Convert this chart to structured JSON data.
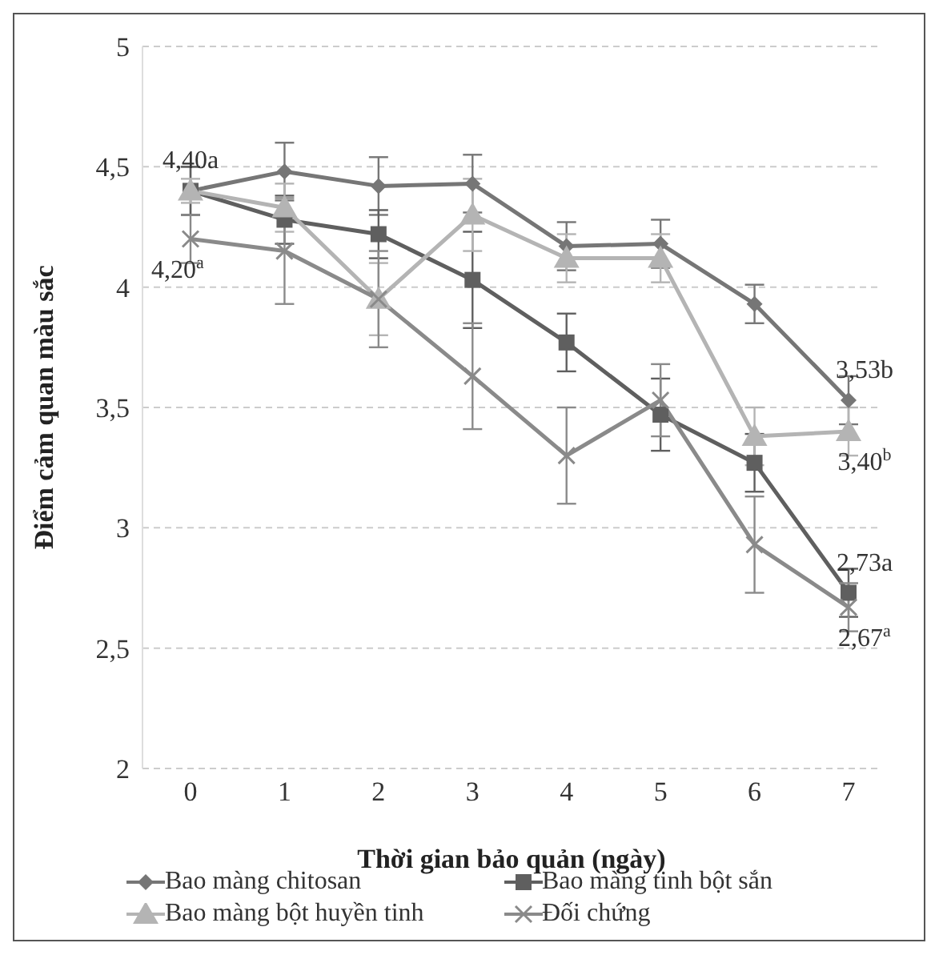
{
  "chart_data": {
    "type": "line",
    "xlabel": "Thời gian bảo quản (ngày)",
    "ylabel": "Điểm cảm quan màu sắc",
    "categories": [
      "0",
      "1",
      "2",
      "3",
      "4",
      "5",
      "6",
      "7"
    ],
    "ylim": [
      2,
      5
    ],
    "yticks": [
      2,
      {
        "value": 2.5,
        "label": "2,5"
      },
      3,
      {
        "value": 3.5,
        "label": "3,5"
      },
      4,
      {
        "value": 4.5,
        "label": "4,5"
      },
      5
    ],
    "grid": "y",
    "legend": "bottom",
    "series": [
      {
        "name": "Bao màng chitosan",
        "color": "#767676",
        "marker": "diamond",
        "values": [
          4.4,
          4.48,
          4.42,
          4.43,
          4.17,
          4.18,
          3.93,
          3.53
        ],
        "errors": [
          0.1,
          0.12,
          0.12,
          0.12,
          0.1,
          0.1,
          0.08,
          0.1
        ],
        "value_labels": [
          "4,40a",
          null,
          null,
          null,
          null,
          null,
          null,
          "3,53b"
        ]
      },
      {
        "name": "Bao màng tinh bột sắn",
        "color": "#5f5f5f",
        "marker": "square",
        "values": [
          4.4,
          4.28,
          4.22,
          4.03,
          3.77,
          3.47,
          3.27,
          2.73
        ],
        "errors": [
          0.1,
          0.1,
          0.1,
          0.2,
          0.12,
          0.15,
          0.12,
          0.1
        ],
        "value_labels": [
          null,
          null,
          null,
          null,
          null,
          null,
          null,
          "2,73a"
        ]
      },
      {
        "name": "Bao màng bột huyền tinh",
        "color": "#b4b4b4",
        "marker": "triangle",
        "values": [
          4.4,
          4.33,
          3.95,
          4.3,
          4.12,
          4.12,
          3.38,
          3.4
        ],
        "errors": [
          0.05,
          0.1,
          0.15,
          0.15,
          0.1,
          0.1,
          0.12,
          0.1
        ],
        "value_labels": [
          null,
          null,
          null,
          null,
          null,
          null,
          null,
          "3,40$^{b}$"
        ]
      },
      {
        "name": "Đối chứng",
        "color": "#8a8a8a",
        "marker": "cross",
        "values": [
          4.2,
          4.15,
          3.95,
          3.63,
          3.3,
          3.53,
          2.93,
          2.67
        ],
        "errors": [
          0.1,
          0.22,
          0.2,
          0.22,
          0.2,
          0.15,
          0.2,
          0.1
        ],
        "value_labels": [
          "4,20$^{a}$",
          null,
          null,
          null,
          null,
          null,
          null,
          "2,67$^{a}$"
        ]
      }
    ]
  }
}
